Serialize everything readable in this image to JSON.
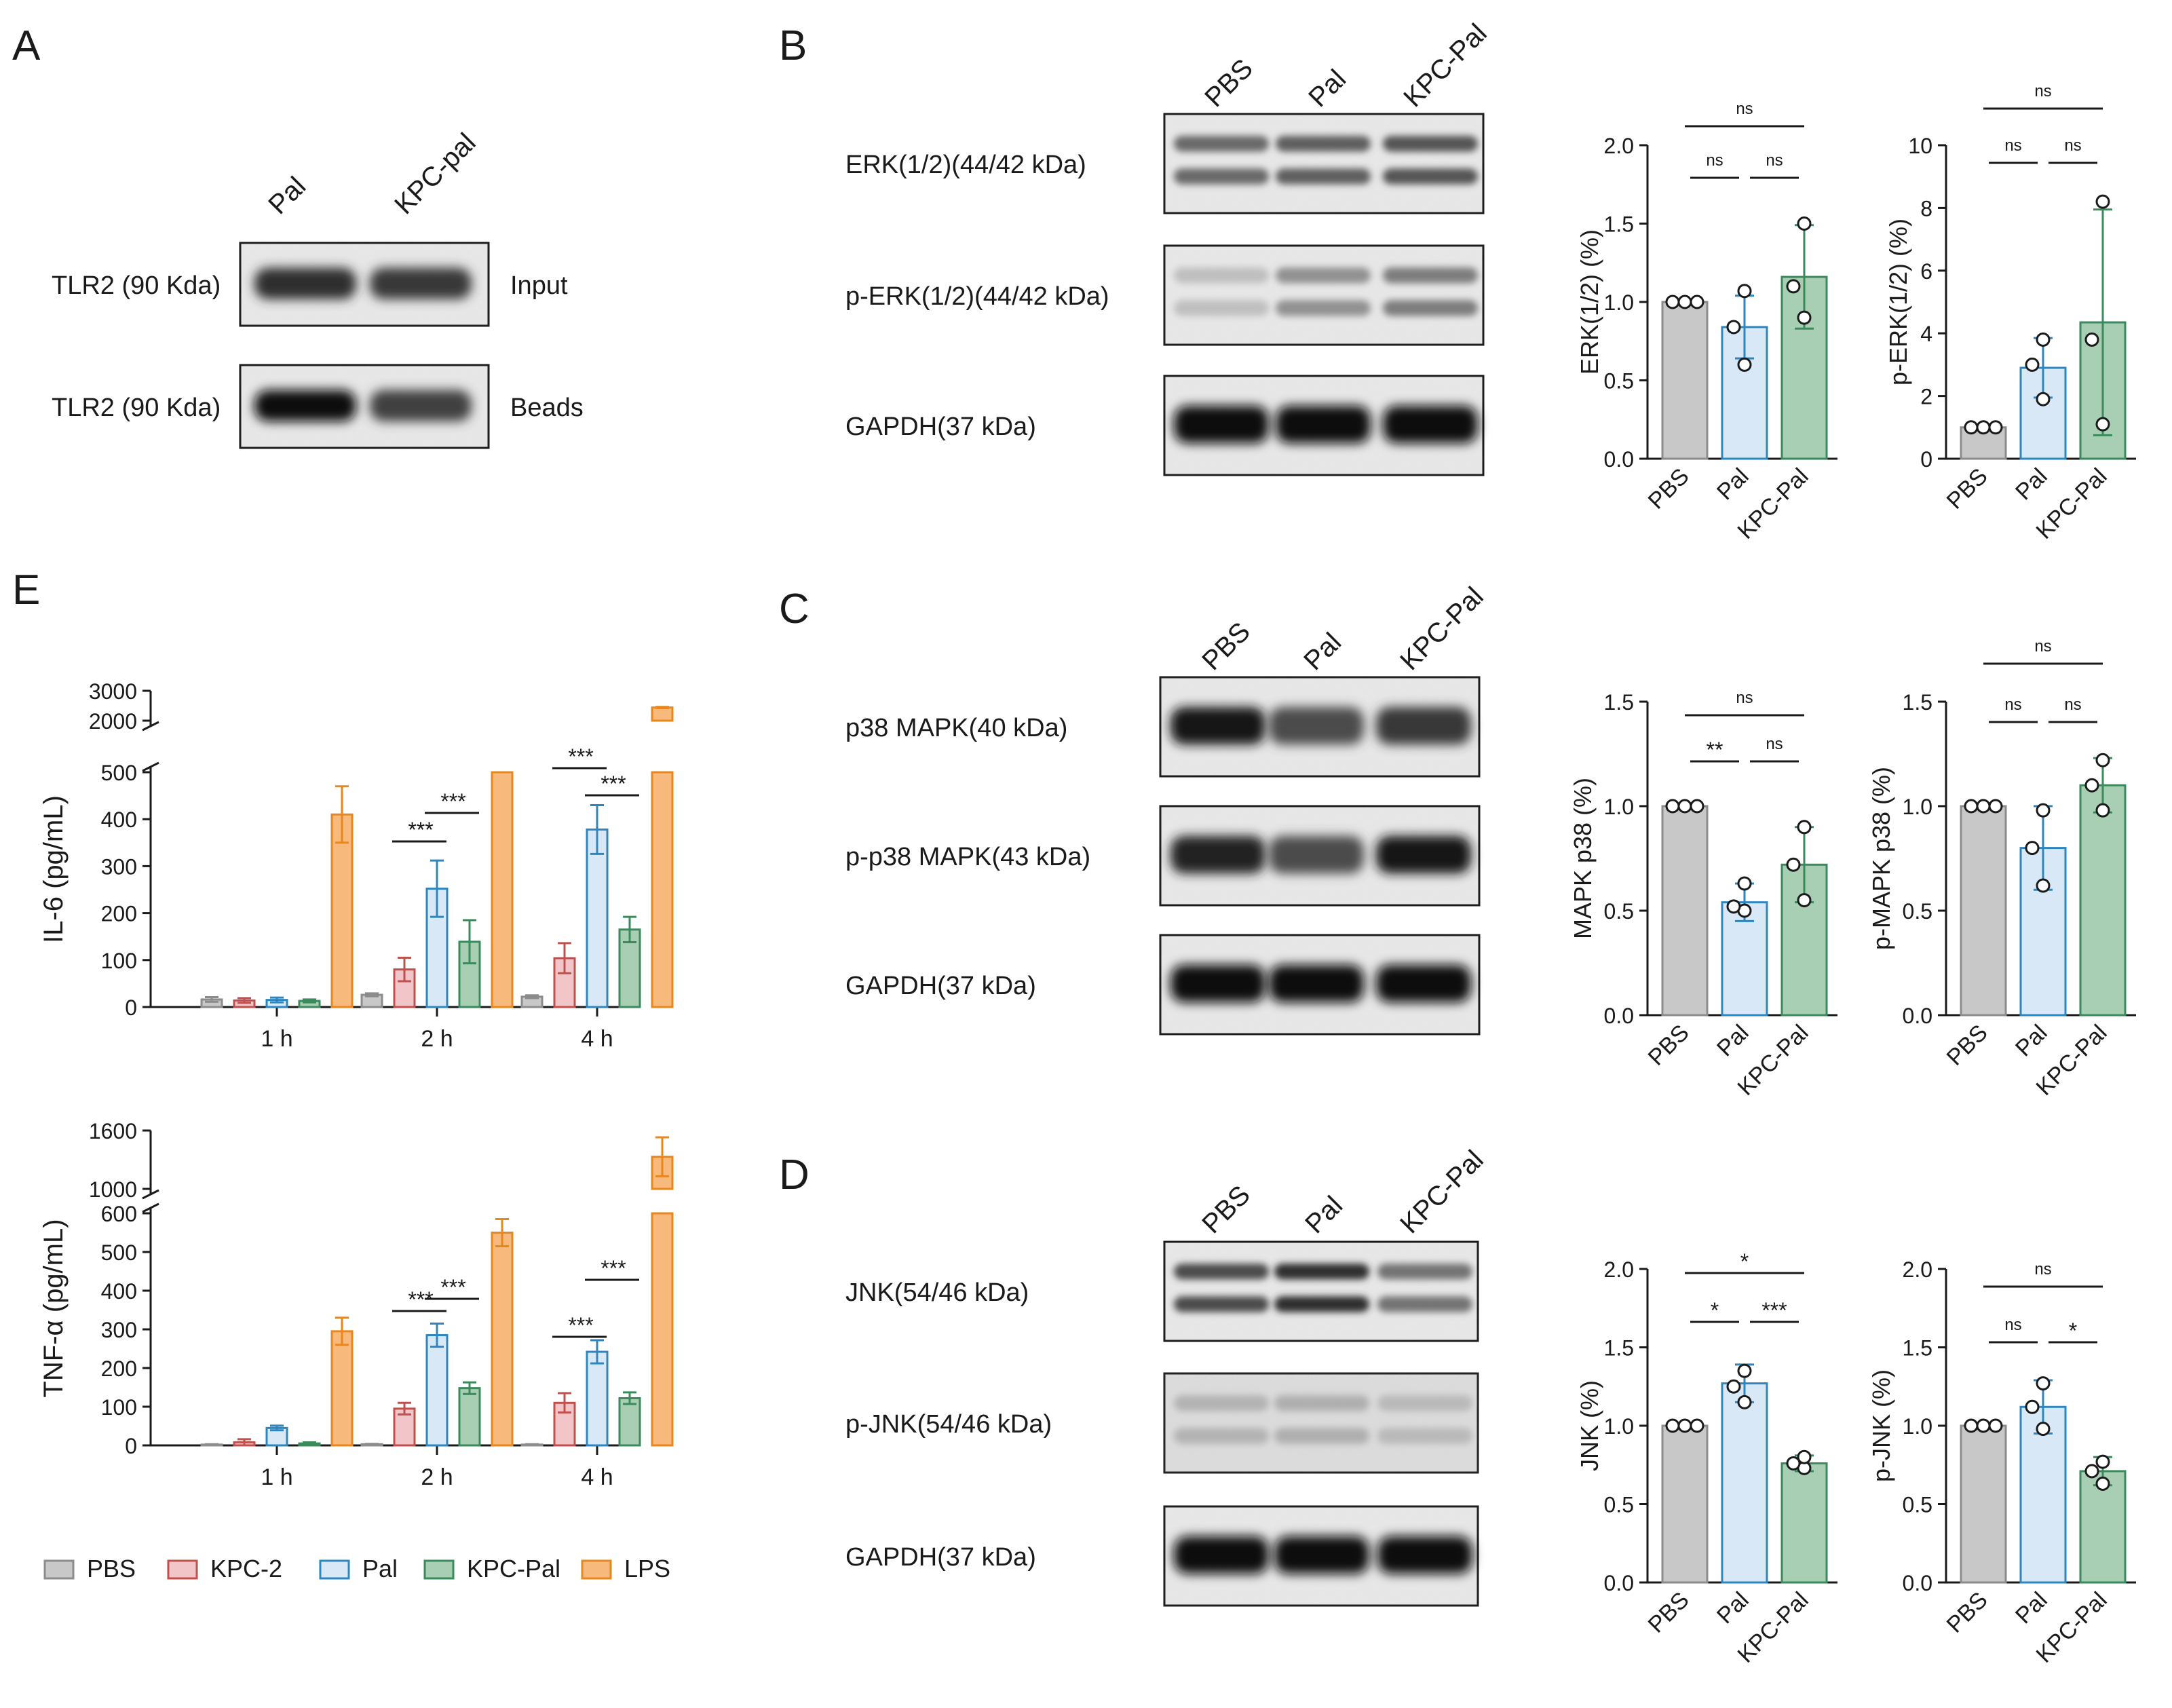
{
  "panels": {
    "A": "A",
    "B": "B",
    "C": "C",
    "D": "D",
    "E": "E"
  },
  "colors": {
    "PBS": "#c8c8c8",
    "KPC-2": "#f2c5c8",
    "Pal": "#d9e8f6",
    "KPC-Pal": "#a8cfb4",
    "LPS": "#f7b97c"
  },
  "strokes": {
    "PBS": "#8c8c8c",
    "KPC-2": "#c0504d",
    "Pal": "#2e86c1",
    "KPC-Pal": "#3a8a5c",
    "LPS": "#e8871e"
  },
  "blotA": {
    "lanes": [
      "Pal",
      "KPC-pal"
    ],
    "rows": [
      {
        "label": "TLR2 (90 Kda)",
        "side": "Input",
        "bands": [
          0.85,
          0.8
        ]
      },
      {
        "label": "TLR2 (90 Kda)",
        "side": "Beads",
        "bands": [
          1.0,
          0.75
        ]
      }
    ]
  },
  "blotB": {
    "lanes": [
      "PBS",
      "Pal",
      "KPC-Pal"
    ],
    "rows": [
      {
        "label": "ERK(1/2)(44/42 kDa)",
        "doublet": true,
        "bands": [
          0.55,
          0.6,
          0.65
        ]
      },
      {
        "label": "p-ERK(1/2)(44/42 kDa)",
        "doublet": true,
        "bands": [
          0.12,
          0.35,
          0.45
        ]
      },
      {
        "label": "GAPDH(37 kDa)",
        "doublet": false,
        "bands": [
          1.0,
          1.0,
          1.0
        ]
      }
    ]
  },
  "blotC": {
    "lanes": [
      "PBS",
      "Pal",
      "KPC-Pal"
    ],
    "rows": [
      {
        "label": "p38 MAPK(40 kDa)",
        "doublet": false,
        "bands": [
          0.95,
          0.7,
          0.8
        ]
      },
      {
        "label": "p-p38 MAPK(43 kDa)",
        "doublet": false,
        "bands": [
          0.9,
          0.7,
          0.95
        ]
      },
      {
        "label": "GAPDH(37 kDa)",
        "doublet": false,
        "bands": [
          1.0,
          1.0,
          1.0
        ]
      }
    ]
  },
  "blotD": {
    "lanes": [
      "PBS",
      "Pal",
      "KPC-Pal"
    ],
    "rows": [
      {
        "label": "JNK(54/46 kDa)",
        "doublet": true,
        "bands": [
          0.7,
          0.85,
          0.5
        ]
      },
      {
        "label": "p-JNK(54/46 kDa)",
        "doublet": true,
        "bands": [
          0.18,
          0.2,
          0.15
        ]
      },
      {
        "label": "GAPDH(37 kDa)",
        "doublet": false,
        "bands": [
          1.0,
          1.0,
          1.0
        ]
      }
    ]
  },
  "chart_data": [
    {
      "id": "erk",
      "type": "bar",
      "categories": [
        "PBS",
        "Pal",
        "KPC-Pal"
      ],
      "values": [
        1.0,
        0.84,
        1.16
      ],
      "errors": [
        0.0,
        0.2,
        0.33
      ],
      "points": [
        [
          1,
          1,
          1
        ],
        [
          0.6,
          0.84,
          1.07
        ],
        [
          0.9,
          1.1,
          1.5
        ]
      ],
      "ylabel": "ERK(1/2) (%)",
      "ylim": [
        0,
        2.0
      ],
      "yticks": [
        "0.0",
        "0.5",
        "1.0",
        "1.5",
        "2.0"
      ],
      "sig": [
        {
          "a": 0,
          "b": 1,
          "label": "ns",
          "level": 1
        },
        {
          "a": 1,
          "b": 2,
          "label": "ns",
          "level": 1
        },
        {
          "a": 0,
          "b": 2,
          "label": "ns",
          "level": 2
        }
      ]
    },
    {
      "id": "perk",
      "type": "bar",
      "categories": [
        "PBS",
        "Pal",
        "KPC-Pal"
      ],
      "values": [
        1.0,
        2.9,
        4.35
      ],
      "errors": [
        0.0,
        0.95,
        3.6
      ],
      "points": [
        [
          1,
          1,
          1
        ],
        [
          1.9,
          3.0,
          3.8
        ],
        [
          1.1,
          3.8,
          8.2
        ]
      ],
      "ylabel": "p-ERK(1/2) (%)",
      "ylim": [
        0,
        10
      ],
      "yticks": [
        "0",
        "2",
        "4",
        "6",
        "8",
        "10"
      ],
      "sig": [
        {
          "a": 0,
          "b": 1,
          "label": "ns",
          "level": 1
        },
        {
          "a": 1,
          "b": 2,
          "label": "ns",
          "level": 1
        },
        {
          "a": 0,
          "b": 2,
          "label": "ns",
          "level": 2
        }
      ]
    },
    {
      "id": "p38",
      "type": "bar",
      "categories": [
        "PBS",
        "Pal",
        "KPC-Pal"
      ],
      "values": [
        1.0,
        0.54,
        0.72
      ],
      "errors": [
        0.0,
        0.09,
        0.18
      ],
      "points": [
        [
          1,
          1,
          1
        ],
        [
          0.5,
          0.52,
          0.63
        ],
        [
          0.55,
          0.72,
          0.9
        ]
      ],
      "ylabel": "MAPK p38 (%)",
      "ylim": [
        0,
        1.5
      ],
      "yticks": [
        "0.0",
        "0.5",
        "1.0",
        "1.5"
      ],
      "sig": [
        {
          "a": 0,
          "b": 1,
          "label": "**",
          "level": 1
        },
        {
          "a": 1,
          "b": 2,
          "label": "ns",
          "level": 1
        },
        {
          "a": 0,
          "b": 2,
          "label": "ns",
          "level": 2
        }
      ]
    },
    {
      "id": "pp38",
      "type": "bar",
      "categories": [
        "PBS",
        "Pal",
        "KPC-Pal"
      ],
      "values": [
        1.0,
        0.8,
        1.1
      ],
      "errors": [
        0.0,
        0.2,
        0.13
      ],
      "points": [
        [
          1,
          1,
          1
        ],
        [
          0.62,
          0.8,
          0.98
        ],
        [
          0.98,
          1.1,
          1.22
        ]
      ],
      "ylabel": "p-MAPK p38 (%)",
      "ylim": [
        0,
        1.5
      ],
      "yticks": [
        "0.0",
        "0.5",
        "1.0",
        "1.5"
      ],
      "sig": [
        {
          "a": 0,
          "b": 1,
          "label": "ns",
          "level": 1
        },
        {
          "a": 1,
          "b": 2,
          "label": "ns",
          "level": 1
        },
        {
          "a": 0,
          "b": 2,
          "label": "ns",
          "level": 2
        }
      ]
    },
    {
      "id": "jnk",
      "type": "bar",
      "categories": [
        "PBS",
        "Pal",
        "KPC-Pal"
      ],
      "values": [
        1.0,
        1.27,
        0.76
      ],
      "errors": [
        0.0,
        0.12,
        0.05
      ],
      "points": [
        [
          1,
          1,
          1
        ],
        [
          1.15,
          1.25,
          1.35
        ],
        [
          0.73,
          0.76,
          0.8
        ]
      ],
      "ylabel": "JNK (%)",
      "ylim": [
        0,
        2.0
      ],
      "yticks": [
        "0.0",
        "0.5",
        "1.0",
        "1.5",
        "2.0"
      ],
      "sig": [
        {
          "a": 0,
          "b": 1,
          "label": "*",
          "level": 1
        },
        {
          "a": 1,
          "b": 2,
          "label": "***",
          "level": 1
        },
        {
          "a": 0,
          "b": 2,
          "label": "*",
          "level": 2
        }
      ]
    },
    {
      "id": "pjnk",
      "type": "bar",
      "categories": [
        "PBS",
        "Pal",
        "KPC-Pal"
      ],
      "values": [
        1.0,
        1.12,
        0.71
      ],
      "errors": [
        0.0,
        0.17,
        0.09
      ],
      "points": [
        [
          1,
          1,
          1
        ],
        [
          0.98,
          1.12,
          1.27
        ],
        [
          0.63,
          0.71,
          0.77
        ]
      ],
      "ylabel": "p-JNK (%)",
      "ylim": [
        0,
        2.0
      ],
      "yticks": [
        "0.0",
        "0.5",
        "1.0",
        "1.5",
        "2.0"
      ],
      "sig": [
        {
          "a": 0,
          "b": 1,
          "label": "ns",
          "level": 1
        },
        {
          "a": 1,
          "b": 2,
          "label": "*",
          "level": 1
        },
        {
          "a": 0,
          "b": 2,
          "label": "ns",
          "level": 2
        }
      ]
    },
    {
      "id": "il6",
      "type": "bar",
      "categories": [
        "1 h",
        "2 h",
        "4 h"
      ],
      "ylabel": "IL-6 (pg/mL)",
      "ylim_lower": [
        0,
        500
      ],
      "ylim_upper": [
        2000,
        3000
      ],
      "yticks_lower": [
        "0",
        "100",
        "200",
        "300",
        "400",
        "500"
      ],
      "yticks_upper": [
        "2000",
        "3000"
      ],
      "series": [
        {
          "name": "PBS",
          "values": [
            16,
            26,
            22
          ],
          "errors": [
            5,
            3,
            3
          ]
        },
        {
          "name": "KPC-2",
          "values": [
            14,
            80,
            104
          ],
          "errors": [
            5,
            25,
            32
          ]
        },
        {
          "name": "Pal",
          "values": [
            15,
            252,
            378
          ],
          "errors": [
            5,
            60,
            52
          ]
        },
        {
          "name": "KPC-Pal",
          "values": [
            13,
            139,
            165
          ],
          "errors": [
            3,
            46,
            27
          ]
        },
        {
          "name": "LPS",
          "values": [
            410,
            1600,
            2440
          ],
          "errors": [
            60,
            100,
            20
          ]
        }
      ],
      "sig": [
        {
          "group": 1,
          "a": 1,
          "b": 2,
          "label": "***"
        },
        {
          "group": 1,
          "a": 2,
          "b": 3,
          "label": "***"
        },
        {
          "group": 2,
          "a": 1,
          "b": 2,
          "label": "***"
        },
        {
          "group": 2,
          "a": 2,
          "b": 3,
          "label": "***"
        }
      ]
    },
    {
      "id": "tnf",
      "type": "bar",
      "categories": [
        "1 h",
        "2 h",
        "4 h"
      ],
      "ylabel": "TNF-α (pg/mL)",
      "ylim_lower": [
        0,
        600
      ],
      "ylim_upper": [
        1000,
        1600
      ],
      "yticks_lower": [
        "0",
        "100",
        "200",
        "300",
        "400",
        "500",
        "600"
      ],
      "yticks_upper": [
        "1000",
        "1600"
      ],
      "series": [
        {
          "name": "PBS",
          "values": [
            2,
            3,
            2
          ],
          "errors": [
            1,
            1,
            1
          ]
        },
        {
          "name": "KPC-2",
          "values": [
            8,
            95,
            110
          ],
          "errors": [
            8,
            15,
            25
          ]
        },
        {
          "name": "Pal",
          "values": [
            45,
            285,
            242
          ],
          "errors": [
            6,
            30,
            30
          ]
        },
        {
          "name": "KPC-Pal",
          "values": [
            5,
            148,
            122
          ],
          "errors": [
            3,
            15,
            15
          ]
        },
        {
          "name": "LPS",
          "values": [
            295,
            550,
            1330
          ],
          "errors": [
            35,
            35,
            200
          ]
        }
      ],
      "sig": [
        {
          "group": 1,
          "a": 1,
          "b": 2,
          "label": "***"
        },
        {
          "group": 1,
          "a": 2,
          "b": 3,
          "label": "***"
        },
        {
          "group": 2,
          "a": 1,
          "b": 2,
          "label": "***"
        },
        {
          "group": 2,
          "a": 2,
          "b": 3,
          "label": "***"
        }
      ]
    }
  ],
  "legend": [
    "PBS",
    "KPC-2",
    "Pal",
    "KPC-Pal",
    "LPS"
  ]
}
